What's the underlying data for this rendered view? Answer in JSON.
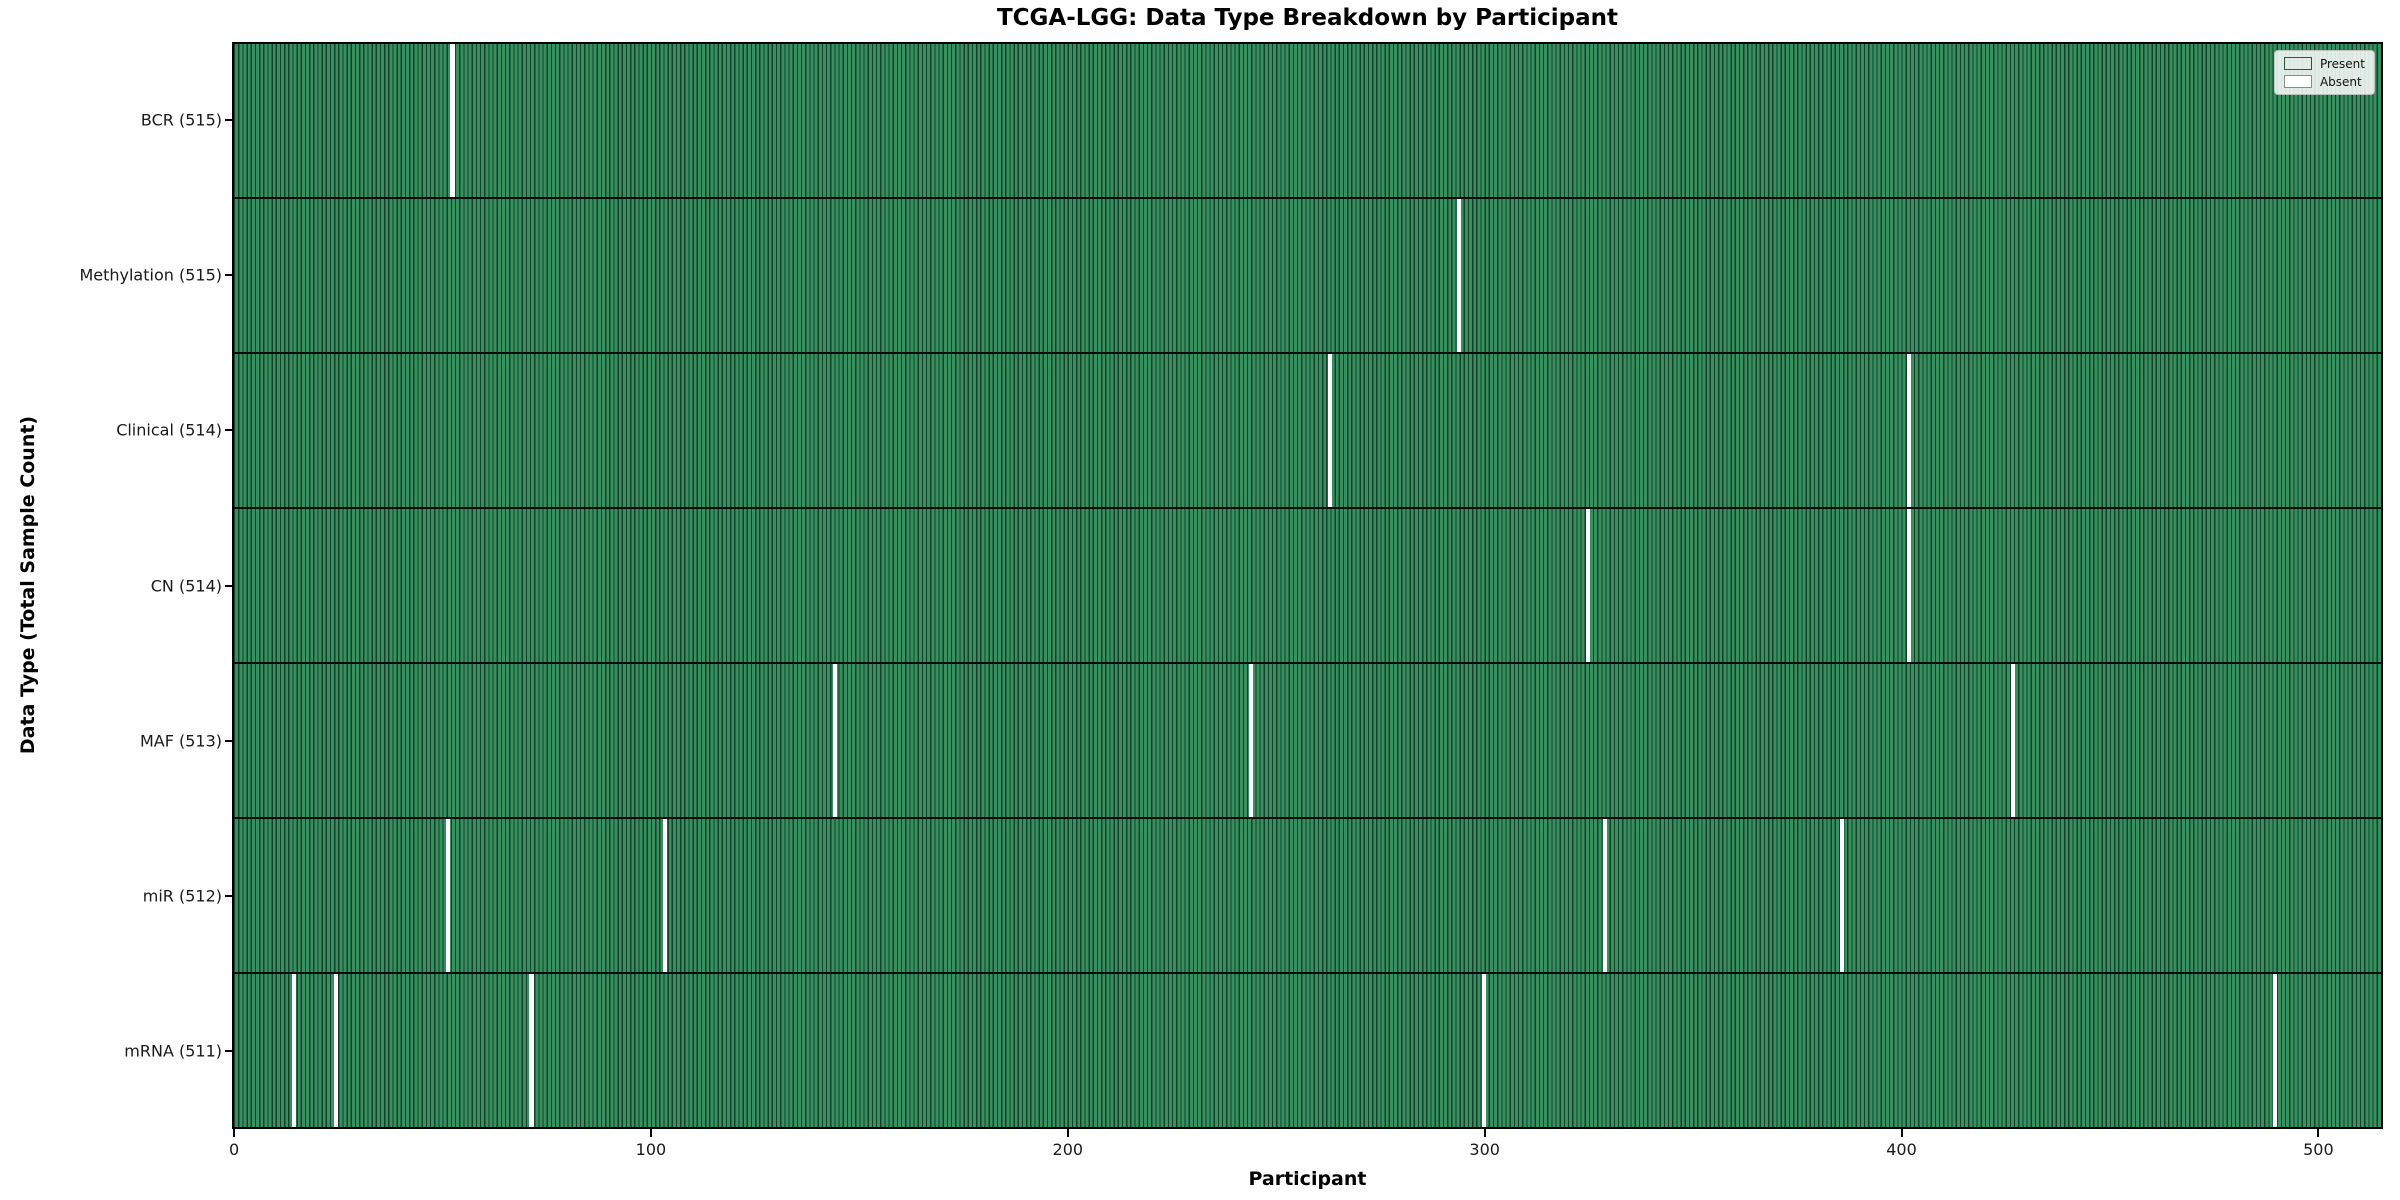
{
  "figure": {
    "title": "TCGA-LGG: Data Type Breakdown by Participant",
    "xlabel": "Participant",
    "ylabel": "Data Type (Total Sample Count)"
  },
  "legend": {
    "items": [
      {
        "label": "Present",
        "color": "#2e8b57"
      },
      {
        "label": "Absent",
        "color": "#ffffff"
      }
    ],
    "position": "upper right"
  },
  "chart_data": {
    "type": "heatmap",
    "title": "TCGA-LGG: Data Type Breakdown by Participant",
    "xlabel": "Participant",
    "ylabel": "Data Type (Total Sample Count)",
    "legend": [
      "Present",
      "Absent"
    ],
    "legend_position": "upper right",
    "grid": false,
    "present_color": "#2e8b57",
    "absent_color": "#ffffff",
    "bar_edge_color": "#16402a",
    "n_participants": 516,
    "xlim": [
      -0.5,
      515.5
    ],
    "x_ticks": [
      0,
      100,
      200,
      300,
      400,
      500
    ],
    "rows": [
      {
        "data_type": "BCR",
        "label": "BCR (515)",
        "total_samples": 515,
        "absent_participants": [
          52
        ]
      },
      {
        "data_type": "Methylation",
        "label": "Methylation (515)",
        "total_samples": 515,
        "absent_participants": [
          294
        ]
      },
      {
        "data_type": "Clinical",
        "label": "Clinical (514)",
        "total_samples": 514,
        "absent_participants": [
          263,
          402
        ]
      },
      {
        "data_type": "CN",
        "label": "CN (514)",
        "total_samples": 514,
        "absent_participants": [
          325,
          402
        ]
      },
      {
        "data_type": "MAF",
        "label": "MAF (513)",
        "total_samples": 513,
        "absent_participants": [
          144,
          244,
          427
        ]
      },
      {
        "data_type": "miR",
        "label": "miR (512)",
        "total_samples": 512,
        "absent_participants": [
          51,
          103,
          329,
          386
        ]
      },
      {
        "data_type": "mRNA",
        "label": "mRNA (511)",
        "total_samples": 511,
        "absent_participants": [
          14,
          24,
          71,
          300,
          490
        ]
      }
    ]
  }
}
